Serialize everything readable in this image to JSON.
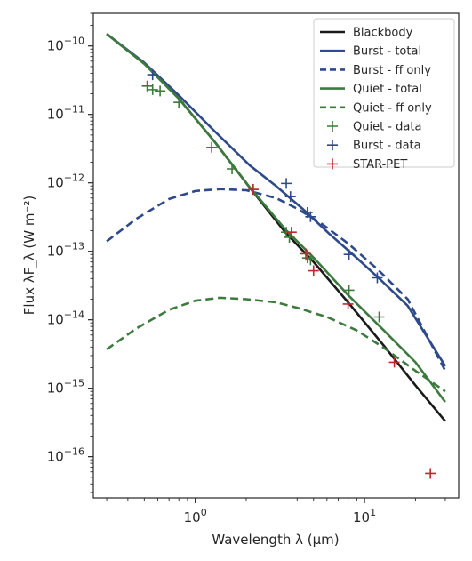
{
  "chart_data": {
    "type": "line",
    "xlabel": "Wavelength λ (μm)",
    "ylabel": "Flux λF_λ (W m⁻²)",
    "xscale": "log",
    "yscale": "log",
    "xlim": [
      0.25,
      36
    ],
    "ylim": [
      2.5e-17,
      3e-10
    ],
    "x_ticks": [
      {
        "value": 1,
        "mantissa": "10",
        "exp": "0"
      },
      {
        "value": 10,
        "mantissa": "10",
        "exp": "1"
      }
    ],
    "y_ticks": [
      {
        "value": 1e-16,
        "mantissa": "10",
        "exp": "−16"
      },
      {
        "value": 1e-15,
        "mantissa": "10",
        "exp": "−15"
      },
      {
        "value": 1e-14,
        "mantissa": "10",
        "exp": "−14"
      },
      {
        "value": 1e-13,
        "mantissa": "10",
        "exp": "−13"
      },
      {
        "value": 1e-12,
        "mantissa": "10",
        "exp": "−12"
      },
      {
        "value": 1e-11,
        "mantissa": "10",
        "exp": "−11"
      },
      {
        "value": 1e-10,
        "mantissa": "10",
        "exp": "−10"
      }
    ],
    "grid": false,
    "legend_position": "top-right",
    "colors": {
      "blackbody": "#1a1a1a",
      "burst": "#2e4a8a",
      "quiet": "#3d7a3d",
      "starpet": "#c0282d",
      "axis": "#262626"
    },
    "series": [
      {
        "name": "Blackbody",
        "kind": "line",
        "style": "solid",
        "color": "#1a1a1a",
        "x": [
          0.3,
          0.5,
          0.8,
          1.3,
          2.1,
          3.4,
          5,
          8,
          13,
          20,
          30
        ],
        "y": [
          1.5e-10,
          5.5e-11,
          1.7e-11,
          4e-12,
          8.5e-13,
          1.9e-13,
          7e-14,
          1.8e-14,
          4.2e-15,
          1.1e-15,
          3.3e-16
        ]
      },
      {
        "name": "Burst - total",
        "kind": "line",
        "style": "solid",
        "color": "#2e4a8a",
        "x": [
          0.3,
          0.5,
          0.8,
          1.3,
          2.1,
          3,
          4.3,
          6.2,
          8.8,
          12.5,
          18,
          30
        ],
        "y": [
          1.5e-10,
          5.7e-11,
          1.9e-11,
          5.7e-12,
          1.8e-12,
          9e-13,
          4.2e-13,
          1.8e-13,
          8.4e-14,
          3.8e-14,
          1.6e-14,
          2.1e-15
        ]
      },
      {
        "name": "Burst - ff only",
        "kind": "line",
        "style": "dashed",
        "color": "#2e4a8a",
        "x": [
          0.3,
          0.45,
          0.7,
          1.0,
          1.4,
          2.0,
          3.0,
          4.0,
          5.5,
          8,
          12,
          18,
          30
        ],
        "y": [
          1.4e-13,
          3e-13,
          5.8e-13,
          7.6e-13,
          8.1e-13,
          7.8e-13,
          6e-13,
          4.2e-13,
          2.6e-13,
          1.3e-13,
          5.4e-14,
          2e-14,
          1.8e-15
        ]
      },
      {
        "name": "Quiet - total",
        "kind": "line",
        "style": "solid",
        "color": "#3d7a3d",
        "x": [
          0.3,
          0.5,
          0.8,
          1.3,
          2.1,
          3.4,
          5,
          8,
          13,
          20,
          30
        ],
        "y": [
          1.5e-10,
          5.5e-11,
          1.7e-11,
          4e-12,
          8.6e-13,
          2.1e-13,
          8.1e-14,
          2.3e-14,
          7e-15,
          2.4e-15,
          6.3e-16
        ]
      },
      {
        "name": "Quiet - ff only",
        "kind": "line",
        "style": "dashed",
        "color": "#3d7a3d",
        "x": [
          0.3,
          0.45,
          0.7,
          1.0,
          1.4,
          2.0,
          3.0,
          4.0,
          6.0,
          9,
          13,
          20,
          30
        ],
        "y": [
          3.7e-15,
          7.5e-15,
          1.4e-14,
          1.9e-14,
          2.1e-14,
          2e-14,
          1.8e-14,
          1.5e-14,
          1.1e-14,
          7e-15,
          3.9e-15,
          1.8e-15,
          9e-16
        ]
      },
      {
        "name": "Quiet - data",
        "kind": "scatter",
        "marker": "plus",
        "color": "#3d7a3d",
        "x": [
          0.52,
          0.56,
          0.62,
          0.8,
          1.25,
          1.65,
          2.2,
          3.45,
          3.6,
          4.6,
          4.8,
          8.1,
          12.2
        ],
        "y": [
          2.6e-11,
          2.3e-11,
          2.2e-11,
          1.5e-11,
          3.3e-12,
          1.6e-12,
          8e-13,
          1.9e-13,
          1.6e-13,
          8e-14,
          7.5e-14,
          2.7e-14,
          1.1e-14
        ]
      },
      {
        "name": "Burst - data",
        "kind": "scatter",
        "marker": "plus",
        "color": "#2e4a8a",
        "x": [
          0.56,
          3.45,
          3.65,
          4.6,
          4.8,
          8.1,
          11.9
        ],
        "y": [
          3.8e-11,
          9.8e-13,
          6.3e-13,
          3.7e-13,
          3.2e-13,
          9e-14,
          4.1e-14
        ]
      },
      {
        "name": "STAR-PET",
        "kind": "scatter",
        "marker": "plus",
        "color": "#c0282d",
        "x": [
          2.2,
          3.7,
          4.5,
          5.0,
          8.0,
          15.0,
          24.5
        ],
        "y": [
          8e-13,
          1.9e-13,
          9.2e-14,
          5.2e-14,
          1.7e-14,
          2.4e-15,
          5.7e-17
        ]
      }
    ]
  }
}
